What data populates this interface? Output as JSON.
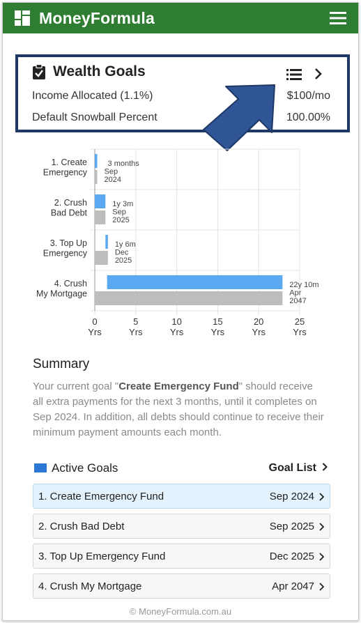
{
  "app": {
    "title": "MoneyFormula"
  },
  "wealth_goals": {
    "title": "Wealth Goals",
    "income_allocated_label": "Income Allocated (1.1%)",
    "income_allocated_value": "$100/mo",
    "snowball_label": "Default Snowball Percent",
    "snowball_value": "100.00%"
  },
  "chart_data": {
    "type": "bar",
    "orientation": "horizontal",
    "categories": [
      [
        "1. Create",
        "Emergency"
      ],
      [
        "2. Crush",
        "Bad Debt"
      ],
      [
        "3. Top Up",
        "Emergency"
      ],
      [
        "4. Crush",
        "My Mortgage"
      ]
    ],
    "series": [
      {
        "color": "#5aa9f0",
        "start": [
          0,
          0,
          1.3,
          1.5
        ],
        "end": [
          0.3,
          1.3,
          1.6,
          22.9
        ]
      },
      {
        "color": "#bdbdbd",
        "start": [
          0,
          0,
          0,
          0
        ],
        "end": [
          0.3,
          1.3,
          1.6,
          22.9
        ]
      }
    ],
    "annotations": [
      [
        "3 months",
        "Sep",
        "2024"
      ],
      [
        "1y 3m",
        "Sep",
        "2025"
      ],
      [
        "1y 6m",
        "Dec",
        "2025"
      ],
      [
        "22y 10m",
        "Apr",
        "2047"
      ]
    ],
    "x_ticks": [
      {
        "value": 0,
        "label": [
          "0",
          "Yrs"
        ]
      },
      {
        "value": 5,
        "label": [
          "5",
          "Yrs"
        ]
      },
      {
        "value": 10,
        "label": [
          "10",
          "Yrs"
        ]
      },
      {
        "value": 15,
        "label": [
          "15",
          "Yrs"
        ]
      },
      {
        "value": 20,
        "label": [
          "20",
          "Yrs"
        ]
      },
      {
        "value": 25,
        "label": [
          "25",
          "Yrs"
        ]
      }
    ],
    "xlim": [
      0,
      25
    ],
    "grid": true
  },
  "summary": {
    "title": "Summary",
    "text_before": "Your current goal \"",
    "goal_name": "Create Emergency Fund",
    "text_after": "\" should receive all extra payments for the next 3 months, until it completes on Sep 2024. In addition, all debts should continue to receive their minimum payment amounts each month."
  },
  "active_goals": {
    "title": "Active Goals",
    "goal_list_label": "Goal List",
    "swatch_color": "#2b78d6",
    "items": [
      {
        "name": "1. Create Emergency Fund",
        "date": "Sep 2024"
      },
      {
        "name": "2. Crush Bad Debt",
        "date": "Sep 2025"
      },
      {
        "name": "3. Top Up Emergency Fund",
        "date": "Dec 2025"
      },
      {
        "name": "4. Crush My Mortgage",
        "date": "Apr 2047"
      }
    ]
  },
  "footer": {
    "text": "© MoneyFormula.com.au"
  }
}
